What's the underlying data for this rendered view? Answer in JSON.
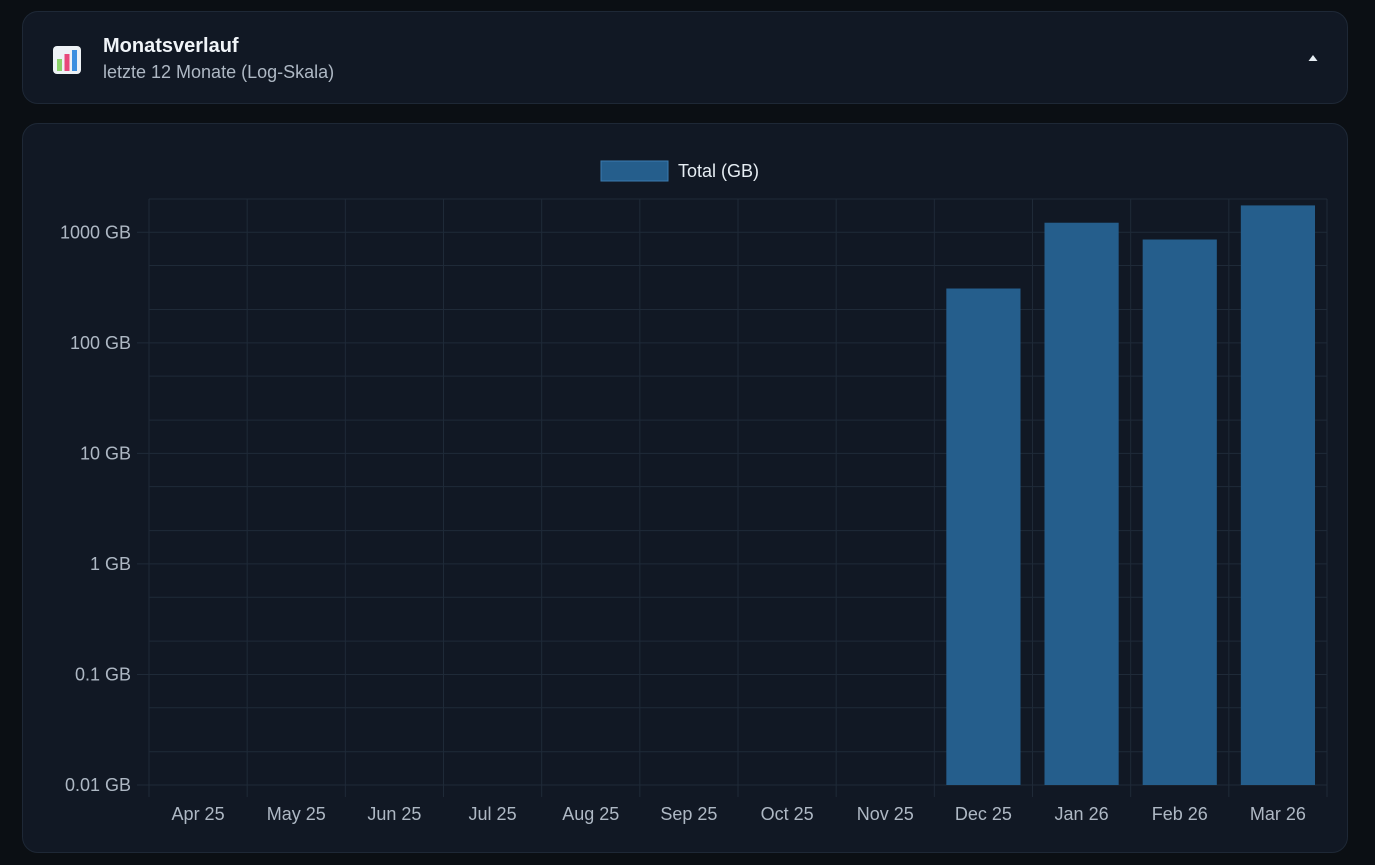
{
  "header": {
    "title": "Monatsverlauf",
    "subtitle": "letzte 12 Monate (Log-Skala)",
    "icon": "bar-chart-icon",
    "toggle_icon": "caret-up-icon"
  },
  "chart_data": {
    "type": "bar",
    "scale": "log",
    "categories": [
      "Apr 25",
      "May 25",
      "Jun 25",
      "Jul 25",
      "Aug 25",
      "Sep 25",
      "Oct 25",
      "Nov 25",
      "Dec 25",
      "Jan 26",
      "Feb 26",
      "Mar 26"
    ],
    "series": [
      {
        "name": "Total (GB)",
        "color": "#255e8c",
        "values": [
          null,
          null,
          null,
          null,
          null,
          null,
          null,
          null,
          310,
          1220,
          860,
          1750
        ]
      }
    ],
    "yticks": [
      0.01,
      0.1,
      1,
      10,
      100,
      1000
    ],
    "ytick_labels": [
      "0.01 GB",
      "0.1 GB",
      "1 GB",
      "10 GB",
      "100 GB",
      "1000 GB"
    ],
    "ylim": [
      0.01,
      2000
    ],
    "grid": true,
    "legend_position": "top-center"
  }
}
